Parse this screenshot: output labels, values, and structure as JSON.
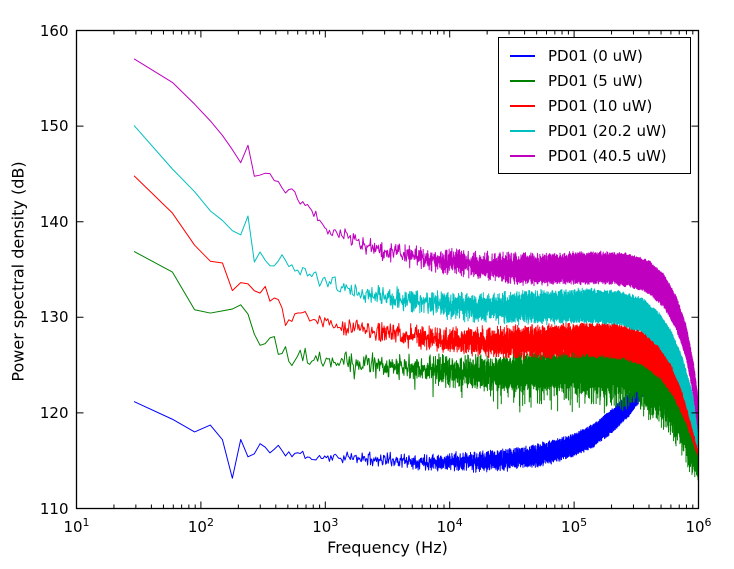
{
  "figure": {
    "bg_color": "#ffffff",
    "frame_color": "#000000"
  },
  "axes": {
    "xlabel": "Frequency (Hz)",
    "ylabel": "Power spectral density (dB)",
    "x_tick_base": "10",
    "x_tick_exponents": [
      "1",
      "2",
      "3",
      "4",
      "5",
      "6"
    ],
    "y_tick_labels": [
      "110",
      "120",
      "130",
      "140",
      "150",
      "160"
    ]
  },
  "legend": {
    "position": "upper right",
    "entries": [
      {
        "label": "PD01 (0 uW)",
        "color": "#0000ff"
      },
      {
        "label": "PD01 (5 uW)",
        "color": "#008000"
      },
      {
        "label": "PD01 (10 uW)",
        "color": "#ff0000"
      },
      {
        "label": "PD01 (20.2 uW)",
        "color": "#00bfbf"
      },
      {
        "label": "PD01 (40.5 uW)",
        "color": "#bf00bf"
      }
    ]
  },
  "chart_data": {
    "type": "line",
    "title": "",
    "xlabel": "Frequency (Hz)",
    "ylabel": "Power spectral density (dB)",
    "x_scale": "log",
    "x_range_hz": [
      10,
      1000000
    ],
    "y_range_db": [
      110,
      160
    ],
    "grid": false,
    "legend_position": "upper right",
    "series_start_hz": 29,
    "series_end_hz": 1000000,
    "series_bin_hz": 30,
    "series": [
      {
        "name": "PD01 (0 uW)",
        "color": "#0000ff",
        "noise_peak_db": 1.3,
        "spiky": false,
        "trend_log10hz_db": [
          [
            1.46,
            121.2
          ],
          [
            1.6,
            120.3
          ],
          [
            1.79,
            119.2
          ],
          [
            1.9,
            117.9
          ],
          [
            1.98,
            118.0
          ],
          [
            2.05,
            118.9
          ],
          [
            2.12,
            118.6
          ],
          [
            2.18,
            117.0
          ],
          [
            2.24,
            112.3
          ],
          [
            2.32,
            117.2
          ],
          [
            2.38,
            115.4
          ],
          [
            2.44,
            116.0
          ],
          [
            2.49,
            117.2
          ],
          [
            2.55,
            115.7
          ],
          [
            2.62,
            116.4
          ],
          [
            2.7,
            115.6
          ],
          [
            2.79,
            115.8
          ],
          [
            2.9,
            115.2
          ],
          [
            3.0,
            115.4
          ],
          [
            3.2,
            115.3
          ],
          [
            3.5,
            115.1
          ],
          [
            3.8,
            114.9
          ],
          [
            4.1,
            114.9
          ],
          [
            4.4,
            115.0
          ],
          [
            4.7,
            115.5
          ],
          [
            4.95,
            116.4
          ],
          [
            5.15,
            117.6
          ],
          [
            5.32,
            119.3
          ],
          [
            5.45,
            121.0
          ],
          [
            5.57,
            123.2
          ],
          [
            5.65,
            124.2
          ],
          [
            5.72,
            124.0
          ],
          [
            5.8,
            122.8
          ],
          [
            5.88,
            120.8
          ],
          [
            5.95,
            118.8
          ],
          [
            6.0,
            117.3
          ]
        ]
      },
      {
        "name": "PD01 (5 uW)",
        "color": "#008000",
        "noise_peak_db": 2.2,
        "spiky": true,
        "trend_log10hz_db": [
          [
            1.46,
            136.9
          ],
          [
            1.62,
            135.6
          ],
          [
            1.78,
            134.6
          ],
          [
            1.86,
            133.0
          ],
          [
            1.93,
            130.8
          ],
          [
            2.0,
            130.7
          ],
          [
            2.1,
            130.6
          ],
          [
            2.23,
            130.8
          ],
          [
            2.3,
            130.9
          ],
          [
            2.35,
            131.6
          ],
          [
            2.42,
            128.3
          ],
          [
            2.45,
            127.6
          ],
          [
            2.5,
            126.6
          ],
          [
            2.55,
            127.3
          ],
          [
            2.59,
            128.1
          ],
          [
            2.63,
            125.9
          ],
          [
            2.68,
            126.8
          ],
          [
            2.72,
            124.9
          ],
          [
            2.8,
            126.4
          ],
          [
            2.88,
            125.5
          ],
          [
            2.96,
            125.9
          ],
          [
            3.05,
            125.4
          ],
          [
            3.2,
            125.3
          ],
          [
            3.4,
            125.0
          ],
          [
            3.7,
            124.6
          ],
          [
            4.0,
            124.4
          ],
          [
            4.4,
            124.2
          ],
          [
            4.8,
            124.5
          ],
          [
            5.1,
            124.7
          ],
          [
            5.35,
            124.8
          ],
          [
            5.55,
            124.4
          ],
          [
            5.7,
            123.2
          ],
          [
            5.8,
            121.8
          ],
          [
            5.9,
            119.5
          ],
          [
            6.0,
            116.9
          ]
        ]
      },
      {
        "name": "PD01 (10 uW)",
        "color": "#ff0000",
        "noise_peak_db": 1.9,
        "spiky": false,
        "trend_log10hz_db": [
          [
            1.46,
            145.0
          ],
          [
            1.6,
            142.8
          ],
          [
            1.79,
            140.7
          ],
          [
            1.9,
            138.8
          ],
          [
            2.0,
            136.5
          ],
          [
            2.04,
            135.8
          ],
          [
            2.18,
            135.7
          ],
          [
            2.25,
            132.7
          ],
          [
            2.35,
            134.0
          ],
          [
            2.45,
            132.6
          ],
          [
            2.52,
            133.3
          ],
          [
            2.56,
            131.8
          ],
          [
            2.63,
            132.1
          ],
          [
            2.67,
            129.2
          ],
          [
            2.75,
            130.4
          ],
          [
            2.84,
            130.2
          ],
          [
            2.92,
            129.9
          ],
          [
            3.0,
            129.6
          ],
          [
            3.15,
            129.1
          ],
          [
            3.35,
            128.6
          ],
          [
            3.6,
            128.2
          ],
          [
            4.0,
            127.6
          ],
          [
            4.4,
            127.4
          ],
          [
            4.8,
            127.5
          ],
          [
            5.1,
            127.6
          ],
          [
            5.35,
            127.5
          ],
          [
            5.55,
            126.8
          ],
          [
            5.7,
            125.3
          ],
          [
            5.8,
            123.5
          ],
          [
            5.9,
            120.8
          ],
          [
            5.97,
            118.2
          ],
          [
            6.0,
            117.2
          ]
        ]
      },
      {
        "name": "PD01 (20.2 uW)",
        "color": "#00bfbf",
        "noise_peak_db": 1.9,
        "spiky": false,
        "trend_log10hz_db": [
          [
            1.46,
            150.0
          ],
          [
            1.6,
            147.7
          ],
          [
            1.76,
            145.6
          ],
          [
            1.86,
            144.0
          ],
          [
            1.95,
            143.2
          ],
          [
            2.05,
            141.3
          ],
          [
            2.15,
            140.5
          ],
          [
            2.24,
            139.3
          ],
          [
            2.31,
            138.0
          ],
          [
            2.37,
            141.4
          ],
          [
            2.43,
            136.0
          ],
          [
            2.49,
            136.8
          ],
          [
            2.55,
            135.6
          ],
          [
            2.6,
            135.2
          ],
          [
            2.66,
            136.4
          ],
          [
            2.71,
            135.1
          ],
          [
            2.77,
            134.8
          ],
          [
            2.84,
            134.9
          ],
          [
            2.92,
            134.1
          ],
          [
            3.0,
            133.8
          ],
          [
            3.1,
            133.3
          ],
          [
            3.25,
            132.7
          ],
          [
            3.45,
            132.2
          ],
          [
            3.7,
            131.7
          ],
          [
            4.0,
            131.2
          ],
          [
            4.4,
            131.0
          ],
          [
            4.8,
            131.1
          ],
          [
            5.1,
            131.2
          ],
          [
            5.35,
            131.0
          ],
          [
            5.55,
            130.2
          ],
          [
            5.68,
            128.7
          ],
          [
            5.78,
            126.8
          ],
          [
            5.87,
            124.0
          ],
          [
            5.95,
            120.3
          ],
          [
            6.0,
            117.8
          ]
        ]
      },
      {
        "name": "PD01 (40.5 uW)",
        "color": "#bf00bf",
        "noise_peak_db": 1.8,
        "spiky": false,
        "trend_log10hz_db": [
          [
            1.46,
            157.0
          ],
          [
            1.6,
            155.8
          ],
          [
            1.72,
            155.2
          ],
          [
            1.82,
            154.0
          ],
          [
            1.92,
            152.7
          ],
          [
            2.02,
            151.3
          ],
          [
            2.1,
            150.2
          ],
          [
            2.17,
            149.1
          ],
          [
            2.24,
            148.4
          ],
          [
            2.28,
            146.3
          ],
          [
            2.33,
            146.0
          ],
          [
            2.37,
            148.7
          ],
          [
            2.42,
            144.9
          ],
          [
            2.47,
            145.3
          ],
          [
            2.52,
            144.9
          ],
          [
            2.57,
            145.2
          ],
          [
            2.62,
            144.2
          ],
          [
            2.68,
            143.2
          ],
          [
            2.74,
            143.5
          ],
          [
            2.8,
            141.9
          ],
          [
            2.86,
            141.3
          ],
          [
            2.93,
            140.3
          ],
          [
            3.0,
            139.5
          ],
          [
            3.1,
            138.8
          ],
          [
            3.25,
            137.8
          ],
          [
            3.4,
            137.2
          ],
          [
            3.6,
            136.6
          ],
          [
            3.85,
            136.0
          ],
          [
            4.1,
            135.6
          ],
          [
            4.4,
            135.2
          ],
          [
            4.7,
            135.0
          ],
          [
            5.0,
            135.1
          ],
          [
            5.25,
            135.2
          ],
          [
            5.45,
            134.9
          ],
          [
            5.6,
            134.2
          ],
          [
            5.72,
            132.8
          ],
          [
            5.82,
            130.5
          ],
          [
            5.9,
            127.5
          ],
          [
            5.96,
            123.5
          ],
          [
            6.0,
            119.5
          ]
        ]
      }
    ]
  }
}
